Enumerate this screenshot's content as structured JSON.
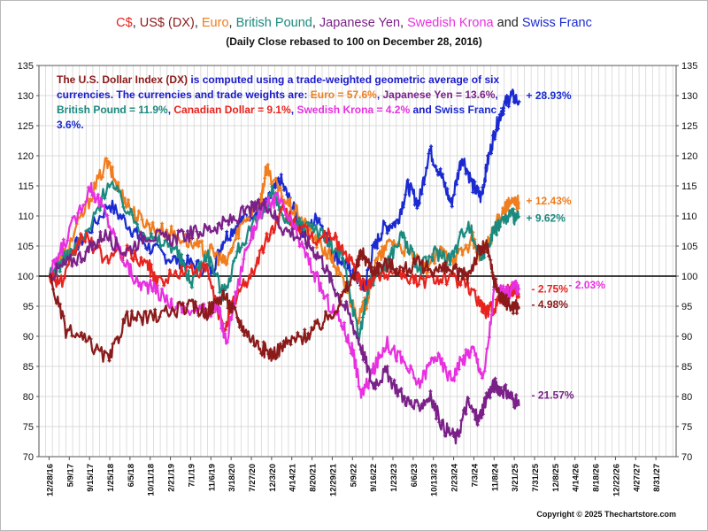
{
  "chart_data": {
    "type": "line",
    "title_parts": [
      {
        "text": "C$",
        "color": "#e8231e"
      },
      {
        "text": ", ",
        "color": "#222222"
      },
      {
        "text": "US$ (DX)",
        "color": "#8b1a1a"
      },
      {
        "text": ", ",
        "color": "#222222"
      },
      {
        "text": "Euro",
        "color": "#f07d1e"
      },
      {
        "text": ", ",
        "color": "#222222"
      },
      {
        "text": "British Pound",
        "color": "#1a8a7e"
      },
      {
        "text": ", ",
        "color": "#222222"
      },
      {
        "text": "Japanese Yen",
        "color": "#7a2088"
      },
      {
        "text": ", ",
        "color": "#222222"
      },
      {
        "text": "Swedish Krona",
        "color": "#e830e0"
      },
      {
        "text": " and ",
        "color": "#222222"
      },
      {
        "text": "Swiss Franc",
        "color": "#1a2ad0"
      }
    ],
    "subtitle": "(Daily Close rebased to 100 on December 28, 2016)",
    "note_parts": [
      {
        "text": "The U.S. Dollar Index (DX)",
        "color": "#8b1a1a"
      },
      {
        "text": " is computed using a trade-weighted geometric average of six currencies.  The currencies and  trade weights are: ",
        "color": "#1a1acc"
      },
      {
        "text": "Euro = 57.6%",
        "color": "#f07d1e"
      },
      {
        "text": ", ",
        "color": "#1a1acc"
      },
      {
        "text": "Japanese Yen = 13.6%",
        "color": "#7a2088"
      },
      {
        "text": ",  ",
        "color": "#1a1acc"
      },
      {
        "text": "British Pound = 11.9%",
        "color": "#1a8a7e"
      },
      {
        "text": ", ",
        "color": "#1a1acc"
      },
      {
        "text": "Canadian Dollar = 9.1%",
        "color": "#e8231e"
      },
      {
        "text": ", ",
        "color": "#1a1acc"
      },
      {
        "text": "Swedish Krona = 4.2%",
        "color": "#e830e0"
      },
      {
        "text": " and ",
        "color": "#1a1acc"
      },
      {
        "text": "Swiss Franc = 3.6%.",
        "color": "#1a2ad0"
      }
    ],
    "copyright": "Copyright © 2025 Thechartstore.com",
    "x_tick_labels": [
      "12/28/16",
      "5/9/17",
      "9/15/17",
      "1/25/18",
      "6/5/18",
      "10/11/18",
      "2/21/19",
      "7/1/19",
      "11/6/19",
      "3/18/20",
      "7/27/20",
      "12/3/20",
      "4/14/21",
      "8/20/21",
      "12/29/21",
      "5/9/22",
      "9/16/22",
      "1/23/23",
      "6/6/23",
      "10/13/23",
      "2/23/24",
      "7/3/24",
      "11/8/24",
      "3/21/25",
      "7/31/25",
      "12/8/25",
      "4/14/26",
      "8/18/26",
      "12/22/26",
      "4/27/27",
      "8/31/27"
    ],
    "y_ticks": [
      70,
      75,
      80,
      85,
      90,
      95,
      100,
      105,
      110,
      115,
      120,
      125,
      130,
      135
    ],
    "ylim": [
      70,
      135
    ],
    "baseline": 100,
    "grid": true,
    "x_unit": "year (decimal)",
    "series": [
      {
        "key": "swiss",
        "color": "#1a2ad0",
        "end_label": "+ 28.93%",
        "x": [
          2017.0,
          2017.25,
          2017.6,
          2018.1,
          2018.5,
          2018.8,
          2019.2,
          2019.6,
          2020.0,
          2020.2,
          2020.5,
          2020.8,
          2021.0,
          2021.25,
          2021.5,
          2021.7,
          2021.95,
          2022.2,
          2022.45,
          2022.65,
          2022.8,
          2022.95,
          2023.15,
          2023.4,
          2023.6,
          2023.8,
          2024.0,
          2024.2,
          2024.4,
          2024.6,
          2024.8,
          2024.95,
          2025.05,
          2025.2,
          2025.35,
          2025.5,
          2025.65
        ],
        "y": [
          100,
          103,
          106,
          112,
          108,
          105,
          103,
          102,
          101,
          106,
          109,
          111,
          112,
          116,
          111,
          107,
          110,
          104,
          102,
          100,
          98,
          104,
          108,
          109,
          115,
          112,
          121,
          117,
          112,
          120,
          115,
          113,
          118,
          124,
          128,
          130,
          129
        ]
      },
      {
        "key": "euro",
        "color": "#f07d1e",
        "end_label": "+ 12.43%",
        "x": [
          2017.0,
          2017.3,
          2017.7,
          2018.05,
          2018.3,
          2018.6,
          2018.9,
          2019.3,
          2019.7,
          2020.0,
          2020.25,
          2020.5,
          2020.9,
          2021.0,
          2021.3,
          2021.6,
          2021.9,
          2022.2,
          2022.45,
          2022.7,
          2022.85,
          2023.0,
          2023.3,
          2023.6,
          2023.9,
          2024.2,
          2024.5,
          2024.8,
          2024.95,
          2025.15,
          2025.35,
          2025.5,
          2025.65
        ],
        "y": [
          100,
          104,
          112,
          119,
          114,
          110,
          108,
          107,
          105,
          104,
          102,
          108,
          113,
          118,
          113,
          110,
          106,
          103,
          98,
          93,
          96,
          102,
          106,
          104,
          101,
          104,
          103,
          106,
          103,
          107,
          111,
          112,
          112.4
        ]
      },
      {
        "key": "gbp",
        "color": "#1a8a7e",
        "end_label": "+ 9.62%",
        "x": [
          2017.0,
          2017.3,
          2017.7,
          2018.1,
          2018.5,
          2018.9,
          2019.3,
          2019.6,
          2019.9,
          2020.2,
          2020.5,
          2020.9,
          2021.1,
          2021.4,
          2021.8,
          2022.1,
          2022.4,
          2022.7,
          2022.9,
          2023.2,
          2023.5,
          2023.8,
          2024.1,
          2024.4,
          2024.7,
          2024.95,
          2025.15,
          2025.3,
          2025.5,
          2025.65
        ],
        "y": [
          100,
          103,
          107,
          116,
          110,
          106,
          105,
          99,
          104,
          97,
          105,
          110,
          114,
          108,
          109,
          106,
          103,
          90,
          99,
          102,
          107,
          101,
          104,
          103,
          109,
          103,
          107,
          109,
          110,
          109.6
        ]
      },
      {
        "key": "cad",
        "color": "#e8231e",
        "end_label": "- 2.75%",
        "x": [
          2017.0,
          2017.25,
          2017.6,
          2018.0,
          2018.4,
          2018.8,
          2019.0,
          2019.5,
          2019.9,
          2020.2,
          2020.4,
          2020.7,
          2021.0,
          2021.3,
          2021.6,
          2021.9,
          2022.2,
          2022.5,
          2022.8,
          2023.0,
          2023.4,
          2023.8,
          2024.2,
          2024.6,
          2024.9,
          2025.05,
          2025.2,
          2025.4,
          2025.55,
          2025.65
        ],
        "y": [
          100,
          99,
          107,
          103,
          104,
          102,
          99,
          101,
          101,
          91,
          96,
          100,
          106,
          111,
          108,
          106,
          107,
          103,
          98,
          100,
          101,
          99,
          100,
          99,
          96,
          94,
          95,
          98,
          98,
          97.2
        ]
      },
      {
        "key": "sek",
        "color": "#e830e0",
        "end_label": "- 2.03%",
        "x": [
          2017.0,
          2017.3,
          2017.75,
          2018.0,
          2018.3,
          2018.6,
          2018.9,
          2019.3,
          2019.8,
          2020.1,
          2020.25,
          2020.6,
          2020.9,
          2021.2,
          2021.5,
          2021.8,
          2022.1,
          2022.4,
          2022.6,
          2022.75,
          2023.0,
          2023.2,
          2023.5,
          2023.8,
          2024.1,
          2024.4,
          2024.6,
          2024.8,
          2025.0,
          2025.2,
          2025.4,
          2025.55,
          2025.65
        ],
        "y": [
          100,
          106,
          115,
          111,
          104,
          99,
          98,
          95,
          94,
          95,
          89,
          104,
          111,
          113,
          108,
          102,
          96,
          92,
          87,
          80,
          85,
          89,
          86,
          82,
          87,
          83,
          86,
          88,
          83,
          98,
          97,
          98,
          97.97
        ]
      },
      {
        "key": "jpy",
        "color": "#7a2088",
        "end_label": "- 21.57%",
        "x": [
          2017.0,
          2017.3,
          2017.7,
          2018.0,
          2018.4,
          2018.8,
          2019.2,
          2019.6,
          2020.0,
          2020.3,
          2020.7,
          2021.0,
          2021.3,
          2021.7,
          2022.0,
          2022.25,
          2022.5,
          2022.75,
          2022.95,
          2023.2,
          2023.5,
          2023.75,
          2024.0,
          2024.25,
          2024.5,
          2024.7,
          2024.9,
          2025.05,
          2025.2,
          2025.35,
          2025.5,
          2025.65
        ],
        "y": [
          100,
          102,
          104,
          107,
          104,
          107,
          106,
          107,
          108,
          109,
          111,
          112,
          108,
          106,
          103,
          98,
          94,
          88,
          82,
          84,
          80,
          78,
          80,
          75,
          73,
          79,
          76,
          80,
          82,
          81,
          80,
          78.4
        ]
      },
      {
        "key": "dx",
        "color": "#8b1a1a",
        "end_label": "- 4.98%",
        "x": [
          2017.0,
          2017.3,
          2017.7,
          2018.1,
          2018.4,
          2018.8,
          2019.2,
          2019.6,
          2019.9,
          2020.2,
          2020.4,
          2020.6,
          2020.9,
          2021.1,
          2021.4,
          2021.7,
          2022.0,
          2022.3,
          2022.6,
          2022.75,
          2022.95,
          2023.2,
          2023.5,
          2023.8,
          2024.1,
          2024.4,
          2024.7,
          2024.9,
          2025.05,
          2025.2,
          2025.35,
          2025.5,
          2025.65
        ],
        "y": [
          100,
          91,
          89,
          86,
          93,
          93,
          94,
          95,
          94,
          97,
          94,
          91,
          88,
          87,
          89,
          90,
          92,
          95,
          100,
          104,
          101,
          102,
          101,
          102,
          101,
          101,
          100,
          104,
          105,
          99,
          96,
          95,
          95.02
        ]
      }
    ]
  }
}
